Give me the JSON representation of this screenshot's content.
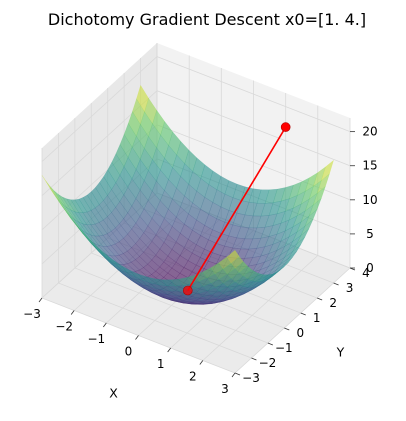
{
  "chart_data": {
    "type": "surface3d",
    "title": "Dichotomy Gradient Descent x0=[1. 4.]",
    "function": "x^2 + y^2 (surface z = X^2 + Y^2)",
    "xlabel": "X",
    "ylabel": "Y",
    "zlabel": "",
    "xlim": [
      -3,
      3
    ],
    "ylim": [
      -3,
      4
    ],
    "zlim": [
      0,
      22
    ],
    "xticks": [
      -3,
      -2,
      -1,
      0,
      1,
      2,
      3
    ],
    "yticks": [
      -3,
      -2,
      -1,
      0,
      1,
      2,
      3,
      4
    ],
    "zticks": [
      0,
      5,
      10,
      15,
      20
    ],
    "colormap": "viridis",
    "surface_alpha": 0.6,
    "grid": true,
    "path": {
      "color": "#ff0000",
      "points": [
        {
          "x": 1.0,
          "y": 4.0,
          "z": 17.0
        },
        {
          "x": 0.0,
          "y": 0.0,
          "z": 0.0
        }
      ]
    }
  }
}
